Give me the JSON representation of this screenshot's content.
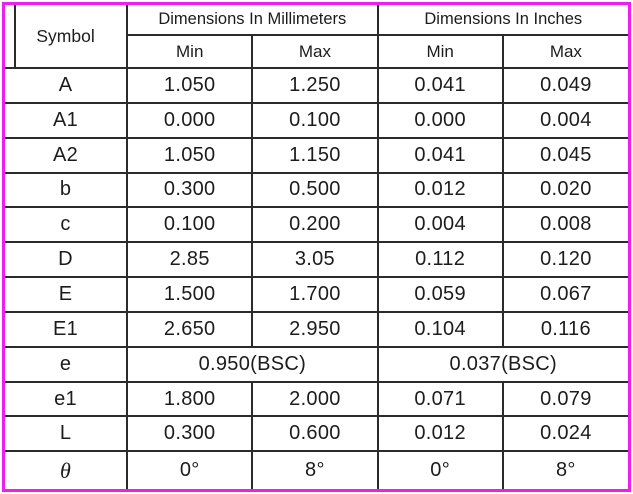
{
  "table": {
    "header": {
      "symbol": "Symbol",
      "groups": [
        {
          "label": "Dimensions In Millimeters"
        },
        {
          "label": "Dimensions In Inches"
        }
      ],
      "subheaders": [
        "Min",
        "Max",
        "Min",
        "Max"
      ]
    },
    "rows": [
      {
        "symbol": "A",
        "cells": [
          "1.050",
          "1.250",
          "0.041",
          "0.049"
        ]
      },
      {
        "symbol": "A1",
        "cells": [
          "0.000",
          "0.100",
          "0.000",
          "0.004"
        ]
      },
      {
        "symbol": "A2",
        "cells": [
          "1.050",
          "1.150",
          "0.041",
          "0.045"
        ]
      },
      {
        "symbol": "b",
        "cells": [
          "0.300",
          "0.500",
          "0.012",
          "0.020"
        ]
      },
      {
        "symbol": "c",
        "cells": [
          "0.100",
          "0.200",
          "0.004",
          "0.008"
        ]
      },
      {
        "symbol": "D",
        "cells": [
          "2.85",
          "3.05",
          "0.112",
          "0.120"
        ]
      },
      {
        "symbol": "E",
        "cells": [
          "1.500",
          "1.700",
          "0.059",
          "0.067"
        ]
      },
      {
        "symbol": "E1",
        "cells": [
          "2.650",
          "2.950",
          "0.104",
          "0.116"
        ]
      },
      {
        "symbol": "e",
        "cells": [
          "0.950(BSC)",
          "0.037(BSC)"
        ],
        "colspan": 2
      },
      {
        "symbol": "e1",
        "cells": [
          "1.800",
          "2.000",
          "0.071",
          "0.079"
        ]
      },
      {
        "symbol": "L",
        "cells": [
          "0.300",
          "0.600",
          "0.012",
          "0.024"
        ]
      },
      {
        "symbol": "θ",
        "cells": [
          "0°",
          "8°",
          "0°",
          "8°"
        ],
        "italic": true
      }
    ]
  },
  "colors": {
    "frame": "#ee1fee",
    "grid": "#2b2b2b",
    "text": "#1c1c1c",
    "background": "#ffffff"
  }
}
